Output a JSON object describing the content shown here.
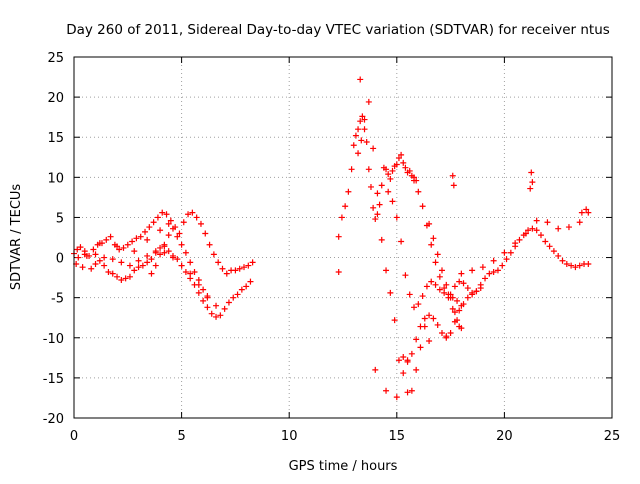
{
  "colors": {
    "series": "#ff0000",
    "grid": "#a0a0a0",
    "axis": "#000000"
  },
  "chart_data": {
    "type": "scatter",
    "title": "Day 260 of 2011, Sidereal Day-to-day VTEC variation (SDTVAR) for receiver ntus",
    "xlabel": "GPS time / hours",
    "ylabel": "SDTVAR / TECUs",
    "xlim": [
      0,
      25
    ],
    "ylim": [
      -20,
      25
    ],
    "xticks": [
      0,
      5,
      10,
      15,
      20,
      25
    ],
    "yticks": [
      -20,
      -15,
      -10,
      -5,
      0,
      5,
      10,
      15,
      20,
      25
    ],
    "grid": true,
    "marker": "+",
    "series": [
      {
        "name": "SDTVAR",
        "x": [
          0.0,
          0.15,
          0.3,
          0.5,
          0.7,
          0.9,
          1.1,
          1.3,
          1.5,
          1.7,
          1.9,
          2.1,
          2.3,
          2.5,
          2.7,
          2.9,
          3.1,
          3.3,
          3.5,
          3.7,
          3.9,
          4.1,
          4.3,
          4.5,
          4.7,
          4.9,
          5.1,
          5.3,
          5.5,
          5.7,
          5.9,
          6.1,
          6.3,
          6.5,
          6.7,
          6.9,
          7.1,
          7.3,
          7.5,
          7.7,
          7.9,
          8.1,
          8.3,
          0.1,
          0.4,
          0.8,
          1.0,
          1.2,
          1.4,
          1.6,
          1.8,
          2.0,
          2.2,
          2.4,
          2.6,
          2.8,
          3.0,
          3.2,
          3.4,
          3.6,
          3.8,
          4.0,
          4.2,
          4.4,
          4.6,
          4.8,
          5.0,
          5.2,
          5.4,
          5.6,
          5.8,
          6.0,
          6.2,
          6.4,
          6.6,
          6.8,
          7.0,
          7.2,
          7.4,
          7.6,
          7.8,
          8.0,
          8.2,
          0.2,
          0.6,
          1.0,
          1.4,
          1.8,
          2.2,
          2.6,
          3.0,
          3.4,
          3.8,
          4.2,
          4.6,
          5.0,
          5.4,
          5.8,
          6.2,
          6.6,
          3.6,
          3.8,
          4.0,
          4.2,
          4.4,
          4.6,
          4.8,
          5.0,
          5.2,
          5.4,
          5.6,
          5.8,
          6.0,
          6.2,
          0.5,
          1.2,
          2.0,
          2.8,
          3.4,
          4.0,
          4.4,
          12.3,
          12.45,
          12.6,
          12.75,
          12.9,
          13.0,
          13.1,
          13.2,
          13.3,
          13.4,
          13.5,
          13.6,
          13.7,
          13.8,
          13.9,
          14.0,
          14.1,
          14.2,
          14.3,
          14.4,
          14.5,
          14.6,
          14.7,
          14.8,
          14.9,
          15.0,
          15.1,
          15.2,
          15.3,
          15.4,
          15.5,
          15.6,
          15.7,
          15.8,
          15.9,
          13.2,
          13.35,
          13.5,
          13.7,
          13.9,
          14.1,
          14.3,
          14.5,
          14.7,
          14.9,
          15.1,
          15.3,
          15.5,
          15.7,
          15.9,
          16.1,
          16.3,
          14.6,
          14.8,
          15.0,
          15.2,
          15.4,
          15.6,
          15.8,
          16.0,
          16.2,
          16.4,
          16.6,
          16.8,
          17.0,
          17.2,
          17.4,
          17.6,
          17.8,
          18.0,
          15.3,
          15.5,
          15.7,
          15.9,
          16.1,
          16.3,
          16.5,
          16.7,
          16.9,
          17.1,
          17.3,
          17.5,
          17.7,
          17.9,
          18.1,
          18.3,
          18.5,
          18.7,
          18.9,
          15.8,
          16.0,
          16.2,
          16.4,
          16.6,
          16.8,
          17.0,
          17.2,
          17.4,
          17.6,
          17.8,
          18.0,
          16.5,
          16.7,
          16.9,
          17.1,
          17.3,
          17.5,
          17.7,
          17.9,
          17.5,
          17.7,
          17.9,
          18.1,
          18.3,
          18.5,
          18.7,
          18.9,
          19.1,
          19.3,
          19.5,
          19.7,
          19.9,
          20.1,
          20.3,
          20.5,
          20.7,
          20.9,
          21.1,
          21.3,
          21.5,
          21.7,
          21.9,
          22.1,
          22.3,
          22.5,
          22.7,
          22.9,
          23.1,
          23.3,
          23.5,
          23.7,
          23.9,
          18.0,
          18.5,
          19.0,
          19.5,
          20.0,
          20.5,
          21.0,
          21.5,
          22.0,
          22.5,
          23.0,
          23.5,
          23.9,
          21.2,
          21.25,
          21.3,
          17.6,
          17.65,
          23.8,
          23.6,
          12.3,
          13.3,
          14.0,
          14.5,
          15.0,
          15.5,
          16.5,
          17.3
        ],
        "y": [
          0.5,
          1.0,
          1.3,
          0.4,
          0.2,
          1.0,
          1.6,
          1.8,
          2.2,
          2.6,
          1.6,
          1.0,
          1.2,
          1.6,
          2.0,
          2.4,
          2.6,
          3.2,
          3.8,
          4.4,
          5.0,
          5.6,
          5.4,
          4.6,
          3.8,
          3.0,
          4.4,
          5.4,
          5.6,
          5.0,
          4.2,
          3.0,
          1.6,
          0.4,
          -0.6,
          -1.4,
          -2.0,
          -1.6,
          -1.6,
          -1.4,
          -1.2,
          -1.0,
          -0.6,
          -0.8,
          -1.2,
          -1.4,
          -0.8,
          -0.4,
          -1.0,
          -1.8,
          -2.0,
          -2.4,
          -2.8,
          -2.6,
          -2.4,
          -1.6,
          -1.2,
          -1.0,
          -0.6,
          -0.2,
          0.6,
          1.2,
          1.4,
          0.8,
          0.2,
          -0.2,
          -1.0,
          -1.8,
          -2.6,
          -3.4,
          -4.4,
          -5.4,
          -6.2,
          -7.0,
          -7.4,
          -7.2,
          -6.4,
          -5.6,
          -5.0,
          -4.6,
          -4.0,
          -3.6,
          -3.0,
          0.0,
          0.2,
          0.4,
          0.0,
          -0.2,
          -0.6,
          -1.0,
          -0.4,
          0.2,
          0.8,
          0.6,
          0.0,
          -1.0,
          -2.0,
          -3.4,
          -4.8,
          -6.0,
          -2.0,
          -1.0,
          0.4,
          1.6,
          2.8,
          3.6,
          2.6,
          1.6,
          0.6,
          -0.6,
          -1.8,
          -2.8,
          -4.0,
          -5.0,
          0.8,
          1.8,
          1.4,
          0.8,
          2.2,
          3.4,
          4.2,
          2.6,
          5.0,
          6.4,
          8.2,
          11.0,
          14.0,
          15.2,
          16.0,
          17.0,
          17.6,
          17.2,
          14.4,
          11.0,
          8.8,
          6.2,
          4.8,
          5.4,
          6.6,
          9.0,
          11.2,
          11.0,
          10.4,
          9.8,
          10.8,
          11.4,
          11.6,
          12.4,
          12.8,
          11.8,
          11.2,
          10.6,
          10.8,
          10.2,
          10.0,
          9.6,
          13.0,
          14.6,
          16.0,
          19.4,
          13.6,
          8.0,
          2.2,
          -1.6,
          -4.4,
          -7.8,
          -12.8,
          -14.4,
          -16.8,
          -16.6,
          -14.0,
          -11.2,
          -8.6,
          8.2,
          7.0,
          5.0,
          2.0,
          -2.2,
          -4.6,
          -6.2,
          -5.8,
          -4.8,
          -3.6,
          -3.0,
          -3.4,
          -4.0,
          -4.4,
          -4.6,
          -5.0,
          -5.4,
          -6.0,
          -12.4,
          -13.0,
          -12.0,
          -10.2,
          -8.6,
          -7.6,
          -7.2,
          -7.6,
          -8.4,
          -9.4,
          -10.0,
          -9.4,
          -8.0,
          -6.6,
          -5.8,
          -5.0,
          -4.6,
          -4.2,
          -3.8,
          9.6,
          8.2,
          6.4,
          4.0,
          1.6,
          -0.6,
          -2.4,
          -3.8,
          -5.0,
          -6.4,
          -7.8,
          -8.8,
          4.2,
          2.4,
          0.4,
          -1.6,
          -3.4,
          -5.0,
          -6.8,
          -8.6,
          -4.6,
          -3.6,
          -3.0,
          -3.2,
          -3.8,
          -4.4,
          -4.2,
          -3.4,
          -2.6,
          -2.0,
          -1.8,
          -1.6,
          -1.0,
          -0.2,
          0.6,
          1.4,
          2.2,
          2.8,
          3.4,
          3.6,
          3.4,
          2.8,
          2.0,
          1.4,
          0.8,
          0.2,
          -0.4,
          -0.8,
          -1.0,
          -1.2,
          -1.0,
          -0.8,
          -0.8,
          -2.0,
          -1.6,
          -1.2,
          -0.4,
          0.6,
          1.8,
          3.0,
          4.6,
          4.4,
          3.6,
          3.8,
          4.4,
          5.6,
          8.6,
          10.6,
          9.4,
          10.2,
          9.0,
          6.0,
          5.6,
          -1.8,
          22.2,
          -14.0,
          -16.6,
          -17.4,
          -12.8,
          -10.4,
          -9.8
        ]
      }
    ]
  }
}
